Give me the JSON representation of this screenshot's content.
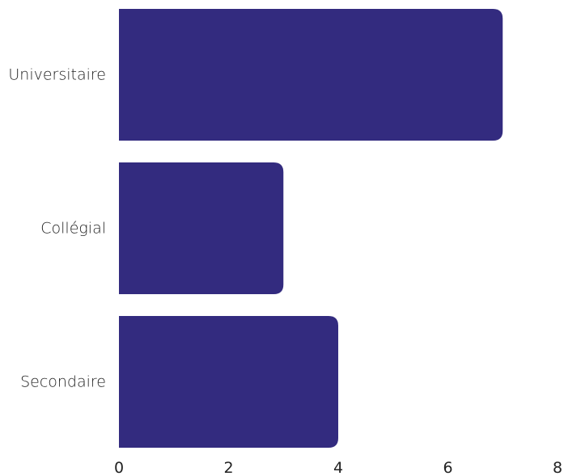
{
  "chart_data": {
    "type": "bar",
    "orientation": "horizontal",
    "categories": [
      "Universitaire",
      "Collégial",
      "Secondaire"
    ],
    "values": [
      7,
      3,
      4
    ],
    "xlim": [
      0,
      8
    ],
    "x_ticks": [
      "0",
      "2",
      "4",
      "6",
      "8"
    ],
    "title": "",
    "xlabel": "",
    "ylabel": "",
    "grid": false,
    "bar_color": "#332b7f"
  }
}
